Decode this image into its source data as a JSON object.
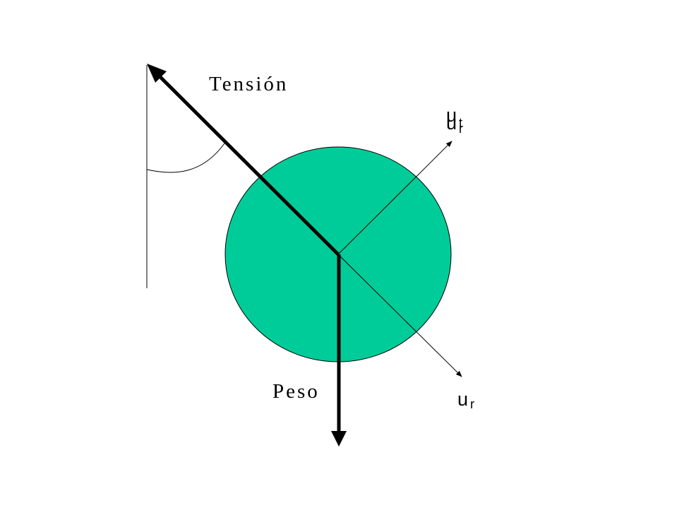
{
  "labels": {
    "tension": "Tensión",
    "peso": "Peso",
    "ut_main": "u",
    "ut_sub": "t",
    "ut_overlap_sub": "r",
    "ur_main": "u",
    "ur_sub": "r"
  },
  "colors": {
    "ball_fill": "#00CC99",
    "stroke": "#000000",
    "background": "#ffffff"
  }
}
